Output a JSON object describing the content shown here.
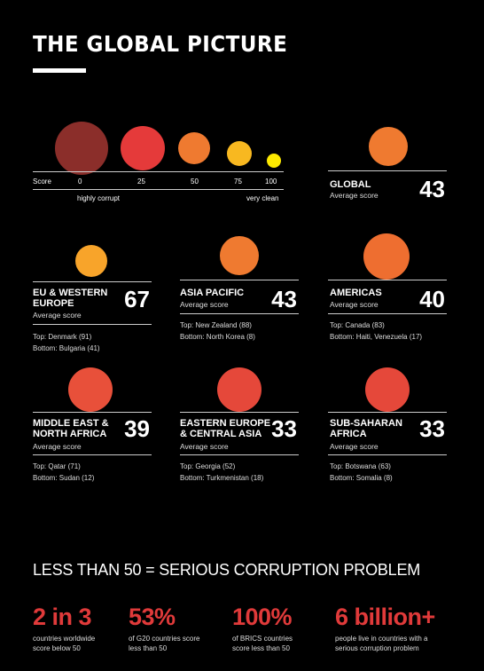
{
  "title": "THE GLOBAL PICTURE",
  "scale": {
    "label": "Score",
    "ticks": [
      "0",
      "25",
      "50",
      "75",
      "100"
    ],
    "left_label": "highly corrupt",
    "right_label": "very clean",
    "colors": [
      "#8b2e2a",
      "#e53a3a",
      "#ef7a30",
      "#f8b820",
      "#fde900"
    ]
  },
  "global": {
    "name": "GLOBAL",
    "avg_label": "Average score",
    "score": "43",
    "color": "#ef7a30"
  },
  "regions": [
    {
      "name": "EU & WESTERN EUROPE",
      "avg_label": "Average score",
      "score": "67",
      "top": "Top: Denmark (91)",
      "bottom": "Bottom: Bulgaria (41)",
      "color": "#f8a42a"
    },
    {
      "name": "ASIA PACIFIC",
      "avg_label": "Average score",
      "score": "43",
      "top": "Top: New Zealand (88)",
      "bottom": "Bottom: North Korea (8)",
      "color": "#ef7a30"
    },
    {
      "name": "AMERICAS",
      "avg_label": "Average score",
      "score": "40",
      "top": "Top: Canada (83)",
      "bottom": "Bottom: Haiti, Venezuela (17)",
      "color": "#ee6e30"
    },
    {
      "name": "MIDDLE EAST & NORTH AFRICA",
      "avg_label": "Average score",
      "score": "39",
      "top": "Top: Qatar (71)",
      "bottom": "Bottom: Sudan (12)",
      "color": "#e8503a"
    },
    {
      "name": "EASTERN EUROPE & CENTRAL ASIA",
      "avg_label": "Average score",
      "score": "33",
      "top": "Top: Georgia (52)",
      "bottom": "Bottom: Turkmenistan (18)",
      "color": "#e5483a"
    },
    {
      "name": "SUB-SAHARAN AFRICA",
      "avg_label": "Average score",
      "score": "33",
      "top": "Top: Botswana (63)",
      "bottom": "Bottom: Somalia (8)",
      "color": "#e5483a"
    }
  ],
  "headline": "LESS THAN 50 = SERIOUS CORRUPTION PROBLEM",
  "stats": [
    {
      "value": "2 in 3",
      "desc": "countries worldwide score below 50"
    },
    {
      "value": "53%",
      "desc": "of G20 countries score less than 50"
    },
    {
      "value": "100%",
      "desc": "of BRICS countries score less than 50"
    },
    {
      "value": "6 billion+",
      "desc": "people live in countries with a serious corruption problem"
    }
  ]
}
